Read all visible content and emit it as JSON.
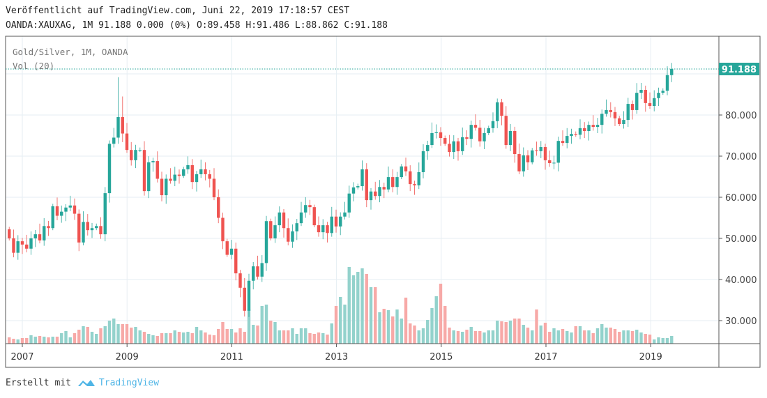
{
  "header": {
    "published": "Veröffentlicht auf TradingView.com, Juni 22, 2019 17:18:57 CEST",
    "symbol": "OANDA:XAUXAG, 1M",
    "last": "91.188",
    "change": "0.000 (0%)",
    "open": "O:89.458",
    "high": "H:91.486",
    "low": "L:88.862",
    "close": "C:91.188"
  },
  "legend": {
    "series": "Gold/Silver, 1M, OANDA",
    "volume": "Vol (20)"
  },
  "footer": {
    "created_with": "Erstellt mit",
    "brand": "TradingView"
  },
  "colors": {
    "up": "#26a69a",
    "down": "#ef5350",
    "up_volume": "#93d2cc",
    "down_volume": "#f7a9a7",
    "grid": "#e6eef3",
    "price_label_bg": "#26a69a"
  },
  "chart_data": {
    "type": "candlestick",
    "title": "Gold/Silver, 1M, OANDA",
    "interval": "1M",
    "start_month": "2006-10",
    "end_month": "2019-06",
    "first_open": 52.2,
    "closes": [
      50,
      46.5,
      49.3,
      48.5,
      47.5,
      50,
      51,
      49.5,
      53,
      52.5,
      57.8,
      55.5,
      56.5,
      57.5,
      58,
      56,
      49,
      54,
      52,
      52.5,
      53,
      51,
      61,
      73,
      74.5,
      79.5,
      75.5,
      71.5,
      69,
      71.5,
      71.5,
      61.5,
      68.5,
      68.8,
      64.5,
      60.5,
      64.5,
      64,
      65.5,
      65.2,
      66.8,
      67.8,
      63.7,
      65.6,
      66.8,
      65.6,
      64.5,
      60,
      55,
      49.3,
      46,
      47.5,
      41.5,
      38,
      32.4,
      39.7,
      43.2,
      40.7,
      44,
      54.2,
      50,
      53.2,
      56.3,
      52.5,
      49.2,
      51.7,
      53.7,
      56.3,
      58.1,
      57.6,
      53.2,
      51.5,
      53.2,
      51.3,
      55.3,
      52.9,
      55.3,
      56.3,
      60.9,
      62.4,
      62.7,
      66.8,
      59.3,
      61.4,
      60.3,
      62.5,
      61.9,
      64.9,
      62.5,
      64.9,
      67.5,
      66.3,
      63.2,
      62.9,
      66.1,
      71.2,
      72.7,
      75.6,
      75.8,
      74.4,
      73,
      71,
      73.6,
      71.2,
      74.6,
      74.2,
      77.6,
      76.9,
      73.6,
      75.6,
      76.8,
      78.5,
      83.1,
      79.8,
      72.7,
      76.1,
      70.5,
      66.3,
      70.2,
      68.5,
      71.4,
      71.2,
      72.2,
      69,
      68.3,
      68.4,
      73.7,
      73.2,
      74.9,
      75.4,
      75.2,
      76.8,
      76.1,
      77.6,
      77.1,
      77.6,
      80.3,
      81.2,
      80.7,
      79.2,
      77.8,
      78.8,
      82.7,
      81.2,
      85.4,
      86.1,
      82.9,
      82.2,
      84.1,
      85.4,
      85.9,
      89.7,
      91.188
    ],
    "notable_highs": {
      "25": 89.2,
      "26": 84.5,
      "112": 84.0
    },
    "notable_lows": {
      "54": 31.0
    },
    "volume": {
      "label": "Vol (20)",
      "values": [
        9,
        7,
        6,
        8,
        8,
        12,
        10,
        11,
        10,
        9,
        10,
        10,
        15,
        18,
        9,
        15,
        20,
        25,
        24,
        17,
        14,
        22,
        25,
        33,
        36,
        28,
        28,
        28,
        23,
        24,
        19,
        17,
        14,
        12,
        11,
        15,
        15,
        15,
        19,
        17,
        16,
        17,
        15,
        24,
        19,
        16,
        13,
        12,
        21,
        31,
        21,
        21,
        16,
        22,
        17,
        49,
        27,
        26,
        54,
        56,
        33,
        31,
        19,
        19,
        19,
        22,
        14,
        22,
        22,
        15,
        14,
        16,
        15,
        13,
        29,
        54,
        67,
        56,
        110,
        98,
        103,
        108,
        100,
        81,
        81,
        45,
        50,
        48,
        39,
        49,
        36,
        66,
        29,
        26,
        19,
        22,
        34,
        51,
        68,
        86,
        54,
        23,
        19,
        18,
        17,
        20,
        24,
        18,
        18,
        16,
        19,
        19,
        33,
        32,
        31,
        33,
        36,
        36,
        27,
        23,
        19,
        49,
        26,
        30,
        17,
        22,
        19,
        21,
        18,
        16,
        25,
        25,
        19,
        19,
        15,
        22,
        28,
        23,
        23,
        21,
        17,
        19,
        19,
        18,
        20,
        16,
        14,
        13,
        6,
        9,
        8,
        8,
        11
      ]
    },
    "y_ticks": [
      "80.000",
      "70.000",
      "60.000",
      "50.000",
      "40.000",
      "30.000"
    ],
    "y_tick_values": [
      80,
      70,
      60,
      50,
      40,
      30
    ],
    "y_gridline_values": [
      90,
      80,
      70,
      60,
      50,
      40,
      30
    ],
    "x_ticks": [
      "2007",
      "2009",
      "2011",
      "2013",
      "2015",
      "2017",
      "2019"
    ],
    "ylim": [
      24,
      100
    ],
    "last_price_label": "91.188",
    "grid": true
  }
}
